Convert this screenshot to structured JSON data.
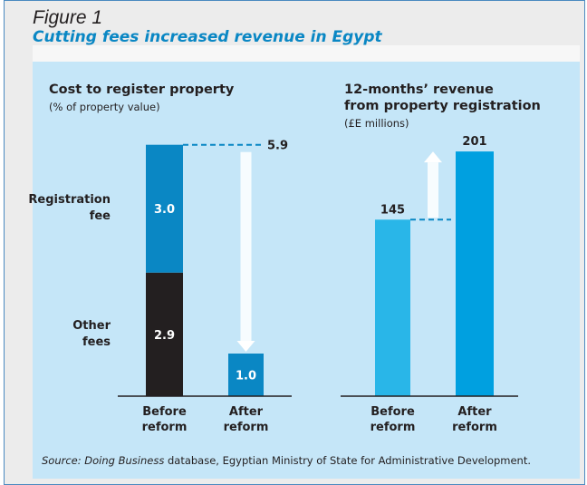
{
  "figure": "Figure 1",
  "heading": "Cutting fees increased revenue in Egypt",
  "source": {
    "label": "Source:",
    "name": "Doing Business",
    "text": "database, Egyptian Ministry of State for Administrative Development."
  },
  "chart_data": [
    {
      "type": "stacked_bar",
      "title": [
        "Cost to register property"
      ],
      "subtitle": "(% of property value)",
      "categories": [
        "Before reform",
        "After reform"
      ],
      "series": [
        {
          "name": "Other fees",
          "color": "#231f20",
          "values": [
            2.9,
            null
          ]
        },
        {
          "name": "Registration fee",
          "color": "#0a87c4",
          "values": [
            3.0,
            1.0
          ],
          "value_labels": [
            "3.0",
            "1.0"
          ]
        }
      ],
      "total": 5.9,
      "ylim": [
        0,
        6
      ]
    },
    {
      "type": "bar",
      "title": [
        "12-months’ revenue",
        "from property registration"
      ],
      "subtitle": "(£E millions)",
      "categories": [
        "Before reform",
        "After reform"
      ],
      "values": [
        145,
        201
      ],
      "colors": [
        "#29b6e8",
        "#00a0e0"
      ],
      "ylim": [
        0,
        210
      ]
    }
  ]
}
